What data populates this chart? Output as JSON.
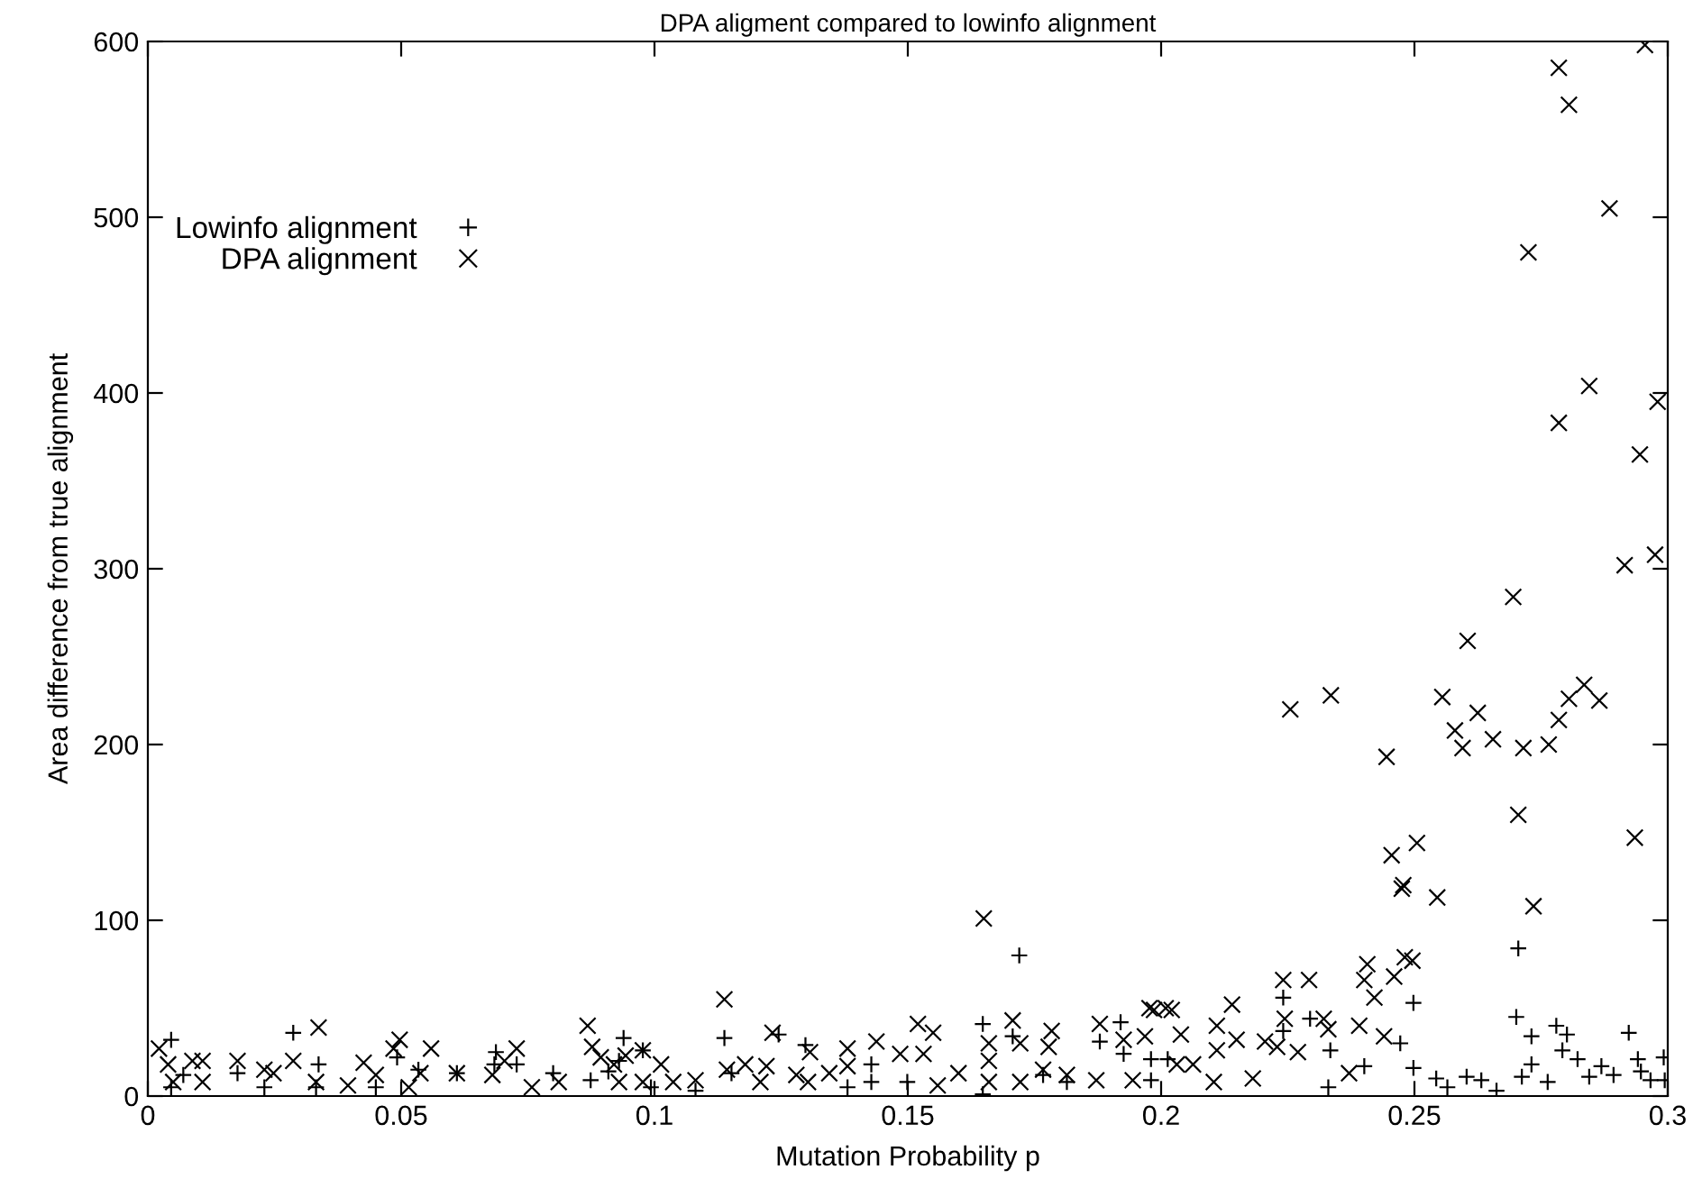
{
  "chart_data": {
    "type": "scatter",
    "title": "DPA aligment compared to lowinfo alignment",
    "xlabel": "Mutation Probability p",
    "ylabel": "Area difference from true alignment",
    "xlim": [
      0,
      0.3
    ],
    "xticks": [
      0,
      0.05,
      0.1,
      0.15,
      0.2,
      0.25,
      0.3
    ],
    "ylim": [
      0,
      600
    ],
    "yticks": [
      0,
      100,
      200,
      300,
      400,
      500,
      600
    ],
    "grid": false,
    "legend": "top left",
    "series": [
      {
        "name": "Lowinfo alignment",
        "color": "#000000",
        "marker": "cross",
        "x": [
          0.0046,
          0.0046,
          0.007,
          0.0177,
          0.023,
          0.0287,
          0.0337,
          0.0332,
          0.045,
          0.0492,
          0.0534,
          0.061,
          0.0687,
          0.0684,
          0.0728,
          0.08,
          0.0874,
          0.0909,
          0.0939,
          0.093,
          0.0977,
          0.0993,
          0.1138,
          0.1245,
          0.1152,
          0.1081,
          0.1298,
          0.1381,
          0.1428,
          0.1428,
          0.1499,
          0.1648,
          0.172,
          0.1707,
          0.1648,
          0.1767,
          0.1814,
          0.1879,
          0.192,
          0.1926,
          0.198,
          0.198,
          0.2013,
          0.2241,
          0.2241,
          0.2294,
          0.2334,
          0.233,
          0.2401,
          0.2472,
          0.2498,
          0.2498,
          0.2543,
          0.2565,
          0.2603,
          0.2632,
          0.2662,
          0.2701,
          0.2705,
          0.2731,
          0.2731,
          0.2712,
          0.2763,
          0.278,
          0.2801,
          0.2792,
          0.2822,
          0.2845,
          0.2869,
          0.2893,
          0.2923,
          0.2941,
          0.2947,
          0.2966,
          0.2992,
          0.2994
        ],
        "values": [
          32,
          5,
          12,
          13,
          5,
          36,
          18,
          5,
          5,
          22,
          15,
          13,
          25,
          18,
          18,
          13,
          9,
          14,
          33,
          20,
          26,
          5,
          33,
          35,
          13,
          3,
          29,
          5,
          18,
          8,
          8,
          41,
          80,
          34,
          1,
          12,
          8,
          31,
          42,
          24,
          21,
          9,
          21,
          56,
          37,
          44,
          26,
          5,
          17,
          30,
          53,
          16,
          10,
          5,
          11,
          9,
          3,
          45,
          84,
          34,
          18,
          11,
          8,
          40,
          35,
          26,
          21,
          11,
          17,
          12,
          36,
          21,
          14,
          9,
          22,
          9
        ]
      },
      {
        "name": "DPA alignment",
        "color": "#000000",
        "marker": "x",
        "x": [
          0.0022,
          0.004,
          0.005,
          0.0088,
          0.0108,
          0.0108,
          0.0177,
          0.023,
          0.0248,
          0.0287,
          0.0337,
          0.0332,
          0.0395,
          0.0426,
          0.045,
          0.0497,
          0.0485,
          0.0515,
          0.0538,
          0.0559,
          0.061,
          0.068,
          0.0728,
          0.0704,
          0.0758,
          0.0811,
          0.0868,
          0.0877,
          0.0894,
          0.092,
          0.093,
          0.0943,
          0.0977,
          0.0977,
          0.1013,
          0.1138,
          0.1233,
          0.1037,
          0.1081,
          0.1143,
          0.1179,
          0.1209,
          0.1221,
          0.128,
          0.1307,
          0.1303,
          0.1345,
          0.1381,
          0.1381,
          0.1438,
          0.1485,
          0.152,
          0.155,
          0.1531,
          0.1559,
          0.16,
          0.165,
          0.166,
          0.166,
          0.166,
          0.1707,
          0.1722,
          0.1722,
          0.1784,
          0.1778,
          0.1767,
          0.1814,
          0.1879,
          0.1926,
          0.1872,
          0.1944,
          0.1968,
          0.1977,
          0.2009,
          0.1986,
          0.2021,
          0.2039,
          0.2031,
          0.2063,
          0.211,
          0.214,
          0.2149,
          0.211,
          0.2104,
          0.2181,
          0.2205,
          0.2229,
          0.2241,
          0.2292,
          0.2244,
          0.227,
          0.2321,
          0.233,
          0.2371,
          0.2391,
          0.2401,
          0.2407,
          0.2421,
          0.244,
          0.246,
          0.2481,
          0.2496,
          0.2255,
          0.2335,
          0.2445,
          0.2455,
          0.2475,
          0.2478,
          0.2505,
          0.2545,
          0.2555,
          0.2595,
          0.258,
          0.2605,
          0.2625,
          0.2655,
          0.2695,
          0.2705,
          0.2715,
          0.2735,
          0.2725,
          0.2765,
          0.2785,
          0.2785,
          0.2785,
          0.2805,
          0.2805,
          0.2835,
          0.2845,
          0.2865,
          0.2885,
          0.2915,
          0.2935,
          0.2945,
          0.2955,
          0.2975,
          0.298
        ],
        "values": [
          27,
          18,
          8,
          20,
          20,
          8,
          20,
          15,
          13,
          20,
          39,
          8,
          6,
          19,
          12,
          32,
          27,
          5,
          13,
          27,
          13,
          12,
          27,
          20,
          5,
          8,
          40,
          28,
          22,
          18,
          8,
          23,
          26,
          8,
          18,
          55,
          36,
          8,
          9,
          15,
          18,
          8,
          17,
          12,
          25,
          8,
          13,
          27,
          17,
          31,
          24,
          41,
          36,
          24,
          6,
          13,
          101,
          30,
          20,
          8,
          43,
          8,
          30,
          37,
          28,
          15,
          12,
          41,
          32,
          9,
          9,
          34,
          50,
          50,
          49,
          49,
          35,
          18,
          18,
          40,
          52,
          32,
          26,
          8,
          10,
          31,
          28,
          66,
          66,
          44,
          25,
          44,
          38,
          13,
          40,
          66,
          75,
          56,
          34,
          68,
          79,
          77,
          220,
          228,
          193,
          137,
          118,
          120,
          144,
          113,
          227,
          198,
          208,
          259,
          218,
          203,
          284,
          160,
          198,
          108,
          480,
          200,
          214,
          383,
          585,
          564,
          226,
          234,
          404,
          225,
          505,
          302,
          147,
          365,
          598,
          308,
          395
        ]
      }
    ]
  }
}
